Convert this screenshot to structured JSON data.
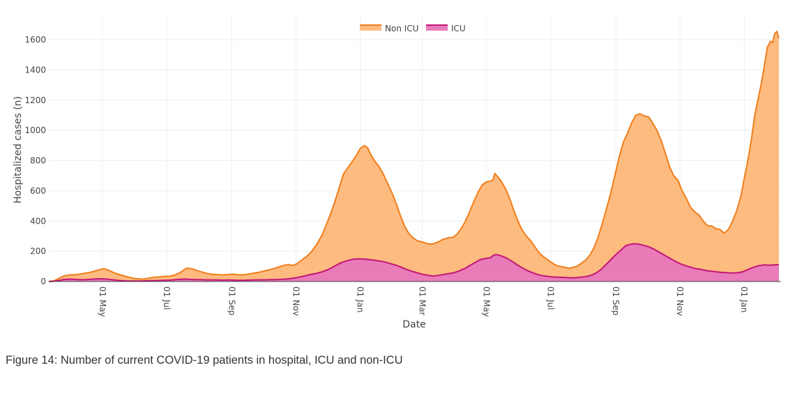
{
  "caption": "Figure 14: Number of current COVID-19 patients in hospital, ICU and non-ICU",
  "chart_data": {
    "type": "area",
    "title": "",
    "xlabel": "Date",
    "ylabel": "Hospitalized cases (n)",
    "ylim": [
      0,
      1730
    ],
    "yticks": [
      0,
      200,
      400,
      600,
      800,
      1000,
      1200,
      1400,
      1600
    ],
    "x_range_days": [
      0,
      686
    ],
    "x_ticks": [
      {
        "day": 51,
        "label": "01 May"
      },
      {
        "day": 112,
        "label": "01 Jul"
      },
      {
        "day": 174,
        "label": "01 Sep"
      },
      {
        "day": 235,
        "label": "01 Nov"
      },
      {
        "day": 296,
        "label": "01 Jan"
      },
      {
        "day": 355,
        "label": "01 Mar"
      },
      {
        "day": 416,
        "label": "01 May"
      },
      {
        "day": 477,
        "label": "01 Jul"
      },
      {
        "day": 539,
        "label": "01 Sep"
      },
      {
        "day": 600,
        "label": "01 Nov"
      },
      {
        "day": 661,
        "label": "01 Jan"
      }
    ],
    "legend": {
      "position": "top-center"
    },
    "series": [
      {
        "name": "Non ICU",
        "line_color": "#f07d1a",
        "fill_color": "#fdbb80",
        "points": [
          [
            0,
            0
          ],
          [
            5,
            5
          ],
          [
            10,
            22
          ],
          [
            15,
            38
          ],
          [
            20,
            44
          ],
          [
            25,
            45
          ],
          [
            30,
            50
          ],
          [
            35,
            56
          ],
          [
            40,
            62
          ],
          [
            45,
            72
          ],
          [
            50,
            82
          ],
          [
            53,
            84
          ],
          [
            57,
            74
          ],
          [
            62,
            58
          ],
          [
            68,
            44
          ],
          [
            75,
            30
          ],
          [
            80,
            22
          ],
          [
            85,
            18
          ],
          [
            90,
            16
          ],
          [
            95,
            22
          ],
          [
            100,
            28
          ],
          [
            105,
            30
          ],
          [
            110,
            34
          ],
          [
            115,
            35
          ],
          [
            120,
            44
          ],
          [
            125,
            60
          ],
          [
            128,
            74
          ],
          [
            131,
            88
          ],
          [
            134,
            86
          ],
          [
            138,
            80
          ],
          [
            142,
            70
          ],
          [
            146,
            62
          ],
          [
            150,
            54
          ],
          [
            155,
            48
          ],
          [
            160,
            46
          ],
          [
            165,
            44
          ],
          [
            170,
            46
          ],
          [
            175,
            48
          ],
          [
            180,
            45
          ],
          [
            185,
            44
          ],
          [
            190,
            50
          ],
          [
            195,
            56
          ],
          [
            200,
            62
          ],
          [
            205,
            70
          ],
          [
            210,
            78
          ],
          [
            215,
            88
          ],
          [
            220,
            100
          ],
          [
            224,
            108
          ],
          [
            228,
            112
          ],
          [
            232,
            106
          ],
          [
            236,
            118
          ],
          [
            240,
            140
          ],
          [
            245,
            165
          ],
          [
            250,
            200
          ],
          [
            255,
            250
          ],
          [
            260,
            310
          ],
          [
            264,
            380
          ],
          [
            268,
            450
          ],
          [
            272,
            530
          ],
          [
            276,
            620
          ],
          [
            280,
            710
          ],
          [
            284,
            750
          ],
          [
            288,
            790
          ],
          [
            292,
            830
          ],
          [
            296,
            880
          ],
          [
            300,
            900
          ],
          [
            303,
            885
          ],
          [
            306,
            840
          ],
          [
            310,
            795
          ],
          [
            314,
            760
          ],
          [
            318,
            710
          ],
          [
            322,
            650
          ],
          [
            326,
            590
          ],
          [
            330,
            520
          ],
          [
            334,
            440
          ],
          [
            338,
            370
          ],
          [
            342,
            320
          ],
          [
            346,
            290
          ],
          [
            350,
            270
          ],
          [
            355,
            262
          ],
          [
            360,
            250
          ],
          [
            365,
            248
          ],
          [
            370,
            262
          ],
          [
            375,
            280
          ],
          [
            380,
            290
          ],
          [
            384,
            292
          ],
          [
            388,
            312
          ],
          [
            392,
            350
          ],
          [
            396,
            400
          ],
          [
            400,
            460
          ],
          [
            404,
            530
          ],
          [
            408,
            590
          ],
          [
            412,
            640
          ],
          [
            416,
            660
          ],
          [
            420,
            665
          ],
          [
            422,
            670
          ],
          [
            424,
            715
          ],
          [
            427,
            690
          ],
          [
            430,
            665
          ],
          [
            434,
            615
          ],
          [
            438,
            550
          ],
          [
            442,
            470
          ],
          [
            446,
            400
          ],
          [
            450,
            340
          ],
          [
            454,
            300
          ],
          [
            458,
            270
          ],
          [
            462,
            230
          ],
          [
            466,
            190
          ],
          [
            470,
            165
          ],
          [
            474,
            145
          ],
          [
            478,
            125
          ],
          [
            482,
            108
          ],
          [
            486,
            100
          ],
          [
            490,
            95
          ],
          [
            494,
            88
          ],
          [
            498,
            92
          ],
          [
            502,
            100
          ],
          [
            506,
            120
          ],
          [
            510,
            140
          ],
          [
            514,
            172
          ],
          [
            518,
            220
          ],
          [
            522,
            290
          ],
          [
            526,
            380
          ],
          [
            530,
            480
          ],
          [
            534,
            580
          ],
          [
            538,
            700
          ],
          [
            542,
            820
          ],
          [
            546,
            920
          ],
          [
            550,
            980
          ],
          [
            554,
            1050
          ],
          [
            558,
            1100
          ],
          [
            562,
            1110
          ],
          [
            566,
            1095
          ],
          [
            570,
            1090
          ],
          [
            574,
            1050
          ],
          [
            578,
            1000
          ],
          [
            582,
            935
          ],
          [
            586,
            850
          ],
          [
            590,
            760
          ],
          [
            594,
            700
          ],
          [
            598,
            670
          ],
          [
            602,
            600
          ],
          [
            606,
            550
          ],
          [
            610,
            490
          ],
          [
            614,
            460
          ],
          [
            618,
            440
          ],
          [
            622,
            400
          ],
          [
            626,
            370
          ],
          [
            630,
            368
          ],
          [
            634,
            350
          ],
          [
            638,
            345
          ],
          [
            642,
            320
          ],
          [
            646,
            345
          ],
          [
            650,
            400
          ],
          [
            654,
            470
          ],
          [
            658,
            570
          ],
          [
            661,
            680
          ],
          [
            665,
            820
          ],
          [
            668,
            950
          ],
          [
            671,
            1100
          ],
          [
            674,
            1200
          ],
          [
            677,
            1300
          ],
          [
            680,
            1420
          ],
          [
            683,
            1550
          ],
          [
            686,
            1590
          ],
          [
            688,
            1580
          ],
          [
            690,
            1640
          ],
          [
            692,
            1655
          ],
          [
            694,
            1610
          ]
        ]
      },
      {
        "name": "ICU",
        "line_color": "#c41677",
        "fill_color": "#e87bb8",
        "points": [
          [
            0,
            0
          ],
          [
            5,
            2
          ],
          [
            10,
            8
          ],
          [
            15,
            14
          ],
          [
            20,
            16
          ],
          [
            25,
            14
          ],
          [
            30,
            12
          ],
          [
            35,
            13
          ],
          [
            40,
            15
          ],
          [
            45,
            17
          ],
          [
            50,
            18
          ],
          [
            55,
            16
          ],
          [
            60,
            12
          ],
          [
            65,
            8
          ],
          [
            70,
            5
          ],
          [
            75,
            3
          ],
          [
            80,
            3
          ],
          [
            85,
            3
          ],
          [
            90,
            4
          ],
          [
            95,
            5
          ],
          [
            100,
            6
          ],
          [
            105,
            7
          ],
          [
            110,
            8
          ],
          [
            115,
            9
          ],
          [
            120,
            12
          ],
          [
            125,
            15
          ],
          [
            130,
            16
          ],
          [
            135,
            14
          ],
          [
            140,
            13
          ],
          [
            145,
            12
          ],
          [
            150,
            11
          ],
          [
            155,
            10
          ],
          [
            160,
            10
          ],
          [
            165,
            9
          ],
          [
            170,
            10
          ],
          [
            175,
            9
          ],
          [
            180,
            8
          ],
          [
            185,
            8
          ],
          [
            190,
            9
          ],
          [
            195,
            10
          ],
          [
            200,
            11
          ],
          [
            205,
            11
          ],
          [
            210,
            12
          ],
          [
            215,
            13
          ],
          [
            220,
            14
          ],
          [
            225,
            16
          ],
          [
            230,
            20
          ],
          [
            235,
            25
          ],
          [
            240,
            32
          ],
          [
            245,
            40
          ],
          [
            250,
            48
          ],
          [
            255,
            55
          ],
          [
            260,
            65
          ],
          [
            265,
            78
          ],
          [
            270,
            95
          ],
          [
            275,
            115
          ],
          [
            280,
            130
          ],
          [
            285,
            140
          ],
          [
            290,
            148
          ],
          [
            295,
            150
          ],
          [
            300,
            148
          ],
          [
            305,
            145
          ],
          [
            310,
            140
          ],
          [
            315,
            135
          ],
          [
            320,
            128
          ],
          [
            325,
            118
          ],
          [
            330,
            108
          ],
          [
            335,
            95
          ],
          [
            340,
            80
          ],
          [
            345,
            68
          ],
          [
            350,
            58
          ],
          [
            355,
            48
          ],
          [
            360,
            42
          ],
          [
            365,
            36
          ],
          [
            370,
            40
          ],
          [
            375,
            46
          ],
          [
            380,
            52
          ],
          [
            385,
            58
          ],
          [
            390,
            70
          ],
          [
            395,
            85
          ],
          [
            400,
            105
          ],
          [
            405,
            125
          ],
          [
            410,
            145
          ],
          [
            415,
            152
          ],
          [
            420,
            158
          ],
          [
            423,
            175
          ],
          [
            426,
            178
          ],
          [
            430,
            170
          ],
          [
            435,
            155
          ],
          [
            440,
            135
          ],
          [
            445,
            112
          ],
          [
            450,
            90
          ],
          [
            455,
            72
          ],
          [
            460,
            58
          ],
          [
            465,
            45
          ],
          [
            470,
            38
          ],
          [
            475,
            33
          ],
          [
            480,
            30
          ],
          [
            485,
            28
          ],
          [
            490,
            27
          ],
          [
            495,
            25
          ],
          [
            500,
            24
          ],
          [
            505,
            28
          ],
          [
            510,
            32
          ],
          [
            515,
            40
          ],
          [
            520,
            55
          ],
          [
            525,
            80
          ],
          [
            530,
            115
          ],
          [
            535,
            150
          ],
          [
            540,
            185
          ],
          [
            545,
            215
          ],
          [
            548,
            235
          ],
          [
            552,
            245
          ],
          [
            556,
            250
          ],
          [
            560,
            248
          ],
          [
            565,
            240
          ],
          [
            570,
            230
          ],
          [
            575,
            215
          ],
          [
            580,
            195
          ],
          [
            585,
            175
          ],
          [
            590,
            155
          ],
          [
            595,
            135
          ],
          [
            600,
            118
          ],
          [
            605,
            105
          ],
          [
            610,
            95
          ],
          [
            615,
            85
          ],
          [
            620,
            80
          ],
          [
            625,
            72
          ],
          [
            630,
            68
          ],
          [
            635,
            64
          ],
          [
            640,
            60
          ],
          [
            645,
            58
          ],
          [
            650,
            56
          ],
          [
            655,
            58
          ],
          [
            660,
            65
          ],
          [
            665,
            80
          ],
          [
            670,
            95
          ],
          [
            675,
            105
          ],
          [
            680,
            110
          ],
          [
            685,
            108
          ],
          [
            690,
            110
          ],
          [
            694,
            112
          ]
        ]
      }
    ]
  }
}
